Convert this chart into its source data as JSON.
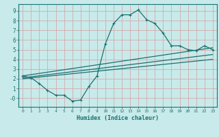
{
  "xlabel": "Humidex (Indice chaleur)",
  "background_color": "#c8eaea",
  "line_color": "#1a7070",
  "grid_color": "#d4aaaa",
  "xlim": [
    -0.5,
    23.5
  ],
  "ylim": [
    -0.9,
    9.7
  ],
  "xticks": [
    0,
    1,
    2,
    3,
    4,
    5,
    6,
    7,
    8,
    9,
    10,
    11,
    12,
    13,
    14,
    15,
    16,
    17,
    18,
    19,
    20,
    21,
    22,
    23
  ],
  "yticks": [
    0,
    1,
    2,
    3,
    4,
    5,
    6,
    7,
    8,
    9
  ],
  "ytick_labels": [
    "-0",
    "1",
    "2",
    "3",
    "4",
    "5",
    "6",
    "7",
    "8",
    "9"
  ],
  "line1_x": [
    0,
    1,
    2,
    3,
    4,
    5,
    6,
    7,
    8,
    9,
    10,
    11,
    12,
    13,
    14,
    15,
    16,
    17,
    18,
    19,
    20,
    21,
    22,
    23
  ],
  "line1_y": [
    2.3,
    2.1,
    1.5,
    0.8,
    0.3,
    0.3,
    -0.3,
    -0.2,
    1.2,
    2.3,
    5.6,
    7.7,
    8.6,
    8.6,
    9.1,
    8.1,
    7.7,
    6.7,
    5.4,
    5.4,
    5.0,
    4.9,
    5.4,
    5.0
  ],
  "line2_x": [
    0,
    23
  ],
  "line2_y": [
    2.3,
    5.2
  ],
  "line3_x": [
    0,
    23
  ],
  "line3_y": [
    2.1,
    4.5
  ],
  "line4_x": [
    0,
    23
  ],
  "line4_y": [
    2.0,
    4.0
  ]
}
